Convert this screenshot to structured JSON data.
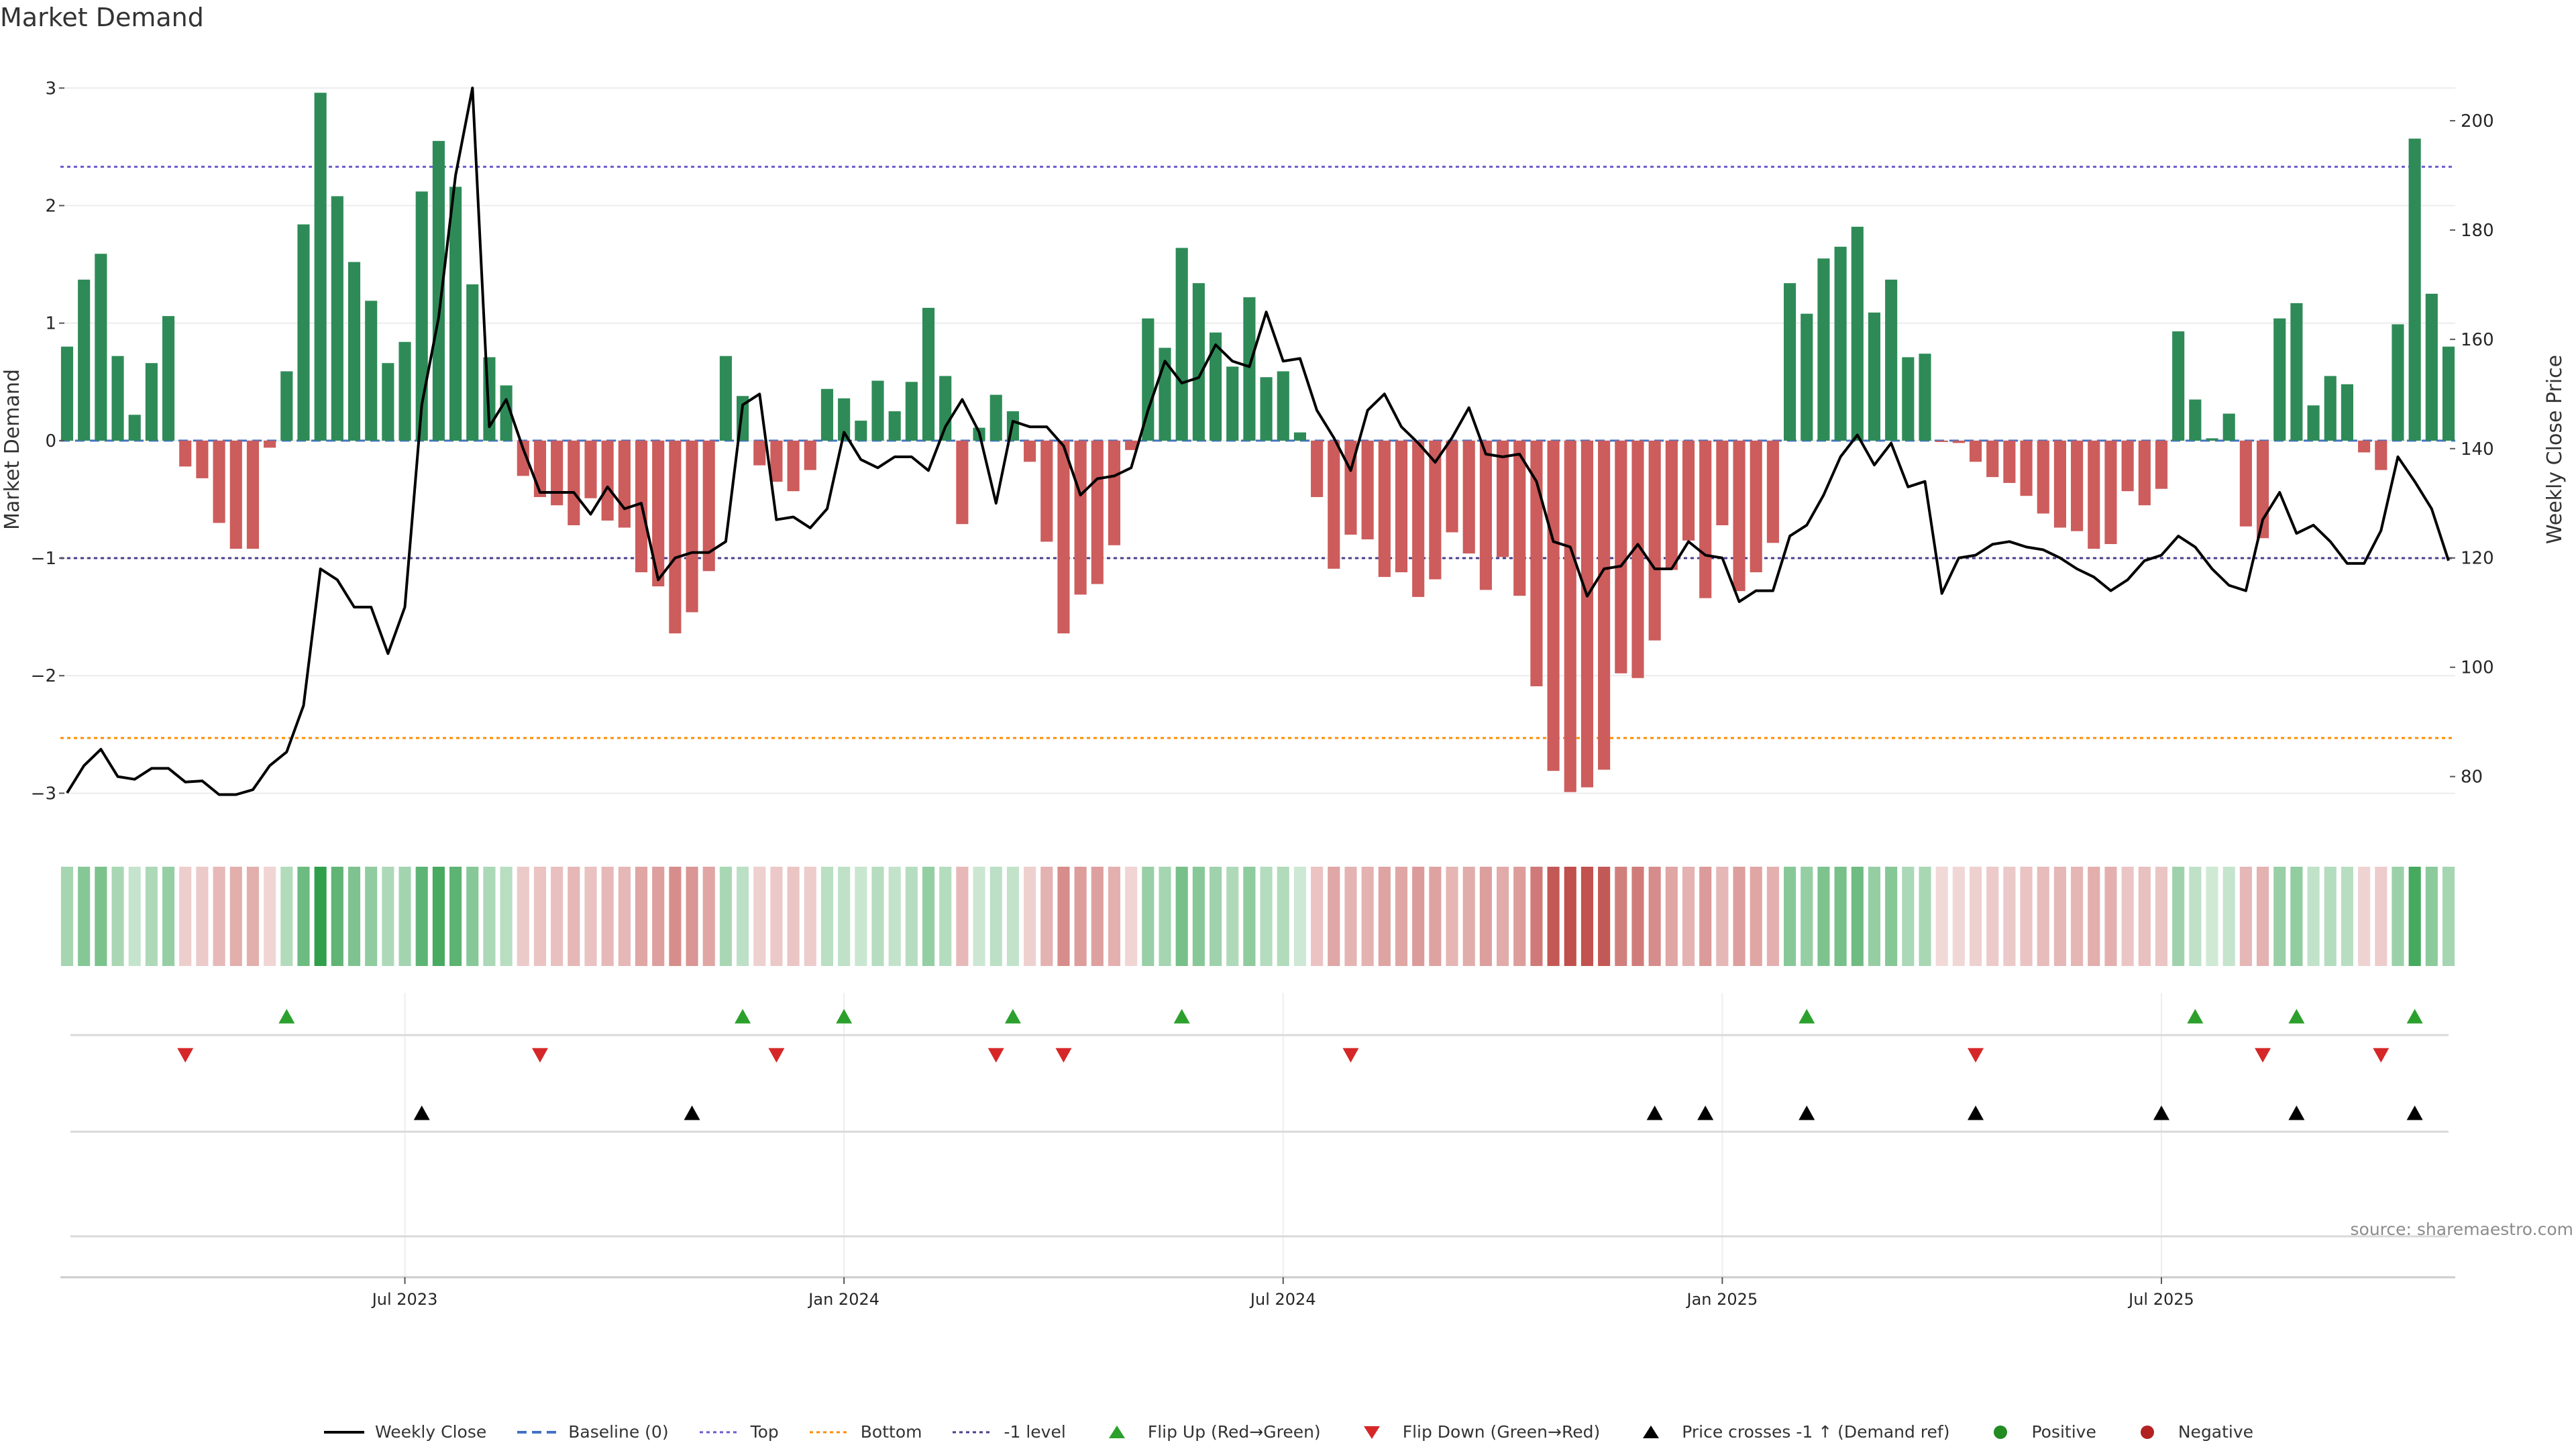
{
  "title": "Market Demand",
  "source": "source: sharemaestro.com",
  "colors": {
    "positive_bar": "#2e8b57",
    "negative_bar": "#cd5c5c",
    "price_line": "#000000",
    "baseline": "#4472c4",
    "top_line": "#6a5acd",
    "bottom_line": "#ff8c00",
    "minus_one_line": "#483d8b",
    "flip_up": "#2ca02c",
    "flip_down": "#d62728",
    "cross_up": "#000000",
    "positive_dot": "#228b22",
    "negative_dot": "#b22222"
  },
  "legend": [
    {
      "label": "Weekly Close",
      "kind": "line",
      "icon": "black-line-icon"
    },
    {
      "label": "Baseline (0)",
      "kind": "dash",
      "icon": "blue-dashed-line-icon"
    },
    {
      "label": "Top",
      "kind": "dot-purple",
      "icon": "purple-dotted-line-icon"
    },
    {
      "label": "Bottom",
      "kind": "dot-orange",
      "icon": "orange-dotted-line-icon"
    },
    {
      "label": "-1 level",
      "kind": "dot-navy",
      "icon": "navy-dotted-line-icon"
    },
    {
      "label": "Flip Up (Red→Green)",
      "kind": "tri-up-green",
      "icon": "green-up-triangle-icon"
    },
    {
      "label": "Flip Down (Green→Red)",
      "kind": "tri-down-red",
      "icon": "red-down-triangle-icon"
    },
    {
      "label": "Price crosses -1 ↑ (Demand ref)",
      "kind": "tri-up-black",
      "icon": "black-up-triangle-icon"
    },
    {
      "label": "Positive",
      "kind": "dot-green",
      "icon": "green-dot-icon"
    },
    {
      "label": "Negative",
      "kind": "dot-red",
      "icon": "red-dot-icon"
    }
  ],
  "chart_data": {
    "type": "bar",
    "title": "Market Demand",
    "xlabel": "",
    "ylabel": "Market Demand",
    "y2label": "Weekly Close Price",
    "ylim": [
      -3.3,
      3.15
    ],
    "y2lim": [
      70.5,
      209.2
    ],
    "yticks": [
      -3,
      -2,
      -1,
      0,
      1,
      2,
      3
    ],
    "y2ticks": [
      80,
      100,
      120,
      140,
      160,
      180,
      200
    ],
    "xticks": [
      {
        "label": "Jul 2023",
        "index": 20
      },
      {
        "label": "Jan 2024",
        "index": 46
      },
      {
        "label": "Jul 2024",
        "index": 72
      },
      {
        "label": "Jan 2025",
        "index": 98
      },
      {
        "label": "Jul 2025",
        "index": 124
      }
    ],
    "reference_lines": {
      "baseline": 0,
      "top": 2.33,
      "bottom": -2.53,
      "minus_one": -1.0
    },
    "demand": [
      0.8,
      1.37,
      1.59,
      0.72,
      0.22,
      0.66,
      1.06,
      -0.22,
      -0.32,
      -0.7,
      -0.92,
      -0.92,
      -0.06,
      0.59,
      1.84,
      2.96,
      2.08,
      1.52,
      1.19,
      0.66,
      0.84,
      2.12,
      2.55,
      2.16,
      1.33,
      0.71,
      0.47,
      -0.3,
      -0.48,
      -0.55,
      -0.72,
      -0.49,
      -0.68,
      -0.74,
      -1.12,
      -1.24,
      -1.64,
      -1.46,
      -1.11,
      0.72,
      0.38,
      -0.21,
      -0.35,
      -0.43,
      -0.25,
      0.44,
      0.36,
      0.17,
      0.51,
      0.25,
      0.5,
      1.13,
      0.55,
      -0.71,
      0.11,
      0.39,
      0.25,
      -0.18,
      -0.86,
      -1.64,
      -1.31,
      -1.22,
      -0.89,
      -0.08,
      1.04,
      0.79,
      1.64,
      1.34,
      0.92,
      0.63,
      1.22,
      0.54,
      0.59,
      0.07,
      -0.48,
      -1.09,
      -0.8,
      -0.84,
      -1.16,
      -1.12,
      -1.33,
      -1.18,
      -0.78,
      -0.96,
      -1.27,
      -0.99,
      -1.32,
      -2.09,
      -2.81,
      -2.99,
      -2.95,
      -2.8,
      -1.98,
      -2.02,
      -1.7,
      -1.1,
      -0.85,
      -1.34,
      -0.72,
      -1.28,
      -1.12,
      -0.87,
      1.34,
      1.08,
      1.55,
      1.65,
      1.82,
      1.09,
      1.37,
      0.71,
      0.74,
      -0.01,
      -0.02,
      -0.18,
      -0.31,
      -0.36,
      -0.47,
      -0.62,
      -0.74,
      -0.77,
      -0.92,
      -0.88,
      -0.43,
      -0.55,
      -0.41,
      0.93,
      0.35,
      0.02,
      0.23,
      -0.73,
      -0.83,
      1.04,
      1.17,
      0.3,
      0.55,
      0.48,
      -0.1,
      -0.25,
      0.99,
      2.57,
      1.25,
      0.8
    ],
    "price": [
      77,
      82,
      85,
      80,
      79.5,
      81.5,
      81.5,
      79,
      79.2,
      76.7,
      76.7,
      77.6,
      82,
      84.5,
      93,
      118,
      116,
      111,
      111,
      102.5,
      111,
      148,
      164,
      190,
      206,
      144,
      149,
      140,
      132,
      132,
      132,
      128,
      133,
      129,
      130,
      116,
      120,
      121,
      121,
      123,
      148,
      150,
      127,
      127.5,
      125.5,
      129,
      143,
      138,
      136.5,
      138.5,
      138.5,
      136,
      144,
      149,
      143,
      130,
      145,
      144,
      144,
      140.5,
      131.5,
      134.5,
      135,
      136.5,
      147,
      156,
      152,
      153,
      159,
      156,
      155,
      165,
      156,
      156.5,
      147,
      142,
      136,
      147,
      150,
      144,
      141,
      137.5,
      142,
      147.5,
      139,
      138.5,
      139,
      134,
      123,
      122,
      113,
      118,
      118.5,
      122.5,
      118,
      118,
      123,
      120.5,
      120,
      112,
      114,
      114,
      124,
      126,
      131.5,
      138.5,
      142.5,
      137,
      141,
      133,
      134,
      113.5,
      120,
      120.5,
      122.5,
      123,
      122,
      121.5,
      120,
      118,
      116.5,
      114,
      116,
      119.5,
      120.5,
      124,
      122,
      118,
      115,
      114,
      127,
      132,
      124.5,
      126,
      123,
      119,
      119,
      125,
      138.5,
      134,
      129,
      119.5
    ],
    "flip_up_indices": [
      13,
      40,
      46,
      56,
      66,
      103,
      126,
      132,
      139
    ],
    "flip_down_indices": [
      7,
      28,
      42,
      55,
      59,
      76,
      113,
      130,
      137
    ],
    "price_cross_up_indices": [
      21,
      37,
      94,
      97,
      103,
      113,
      124,
      132,
      139
    ]
  }
}
